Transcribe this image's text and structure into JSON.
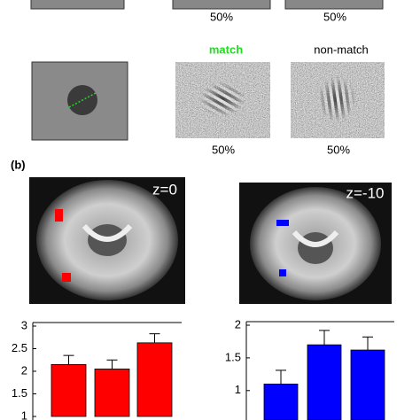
{
  "figure": {
    "row1_labels": [
      "50%",
      "50%"
    ],
    "row2_headers": [
      "match",
      "non-match"
    ],
    "row2_labels": [
      "50%",
      "50%"
    ],
    "panel_label": "(b)",
    "slice_labels": [
      "z=0",
      "z=-10"
    ]
  },
  "chart_data": [
    {
      "type": "bar",
      "values": [
        2.15,
        2.05,
        2.63
      ],
      "errors": [
        0.2,
        0.2,
        0.2
      ],
      "color": "#ff0000",
      "ylim": [
        1,
        3
      ],
      "yticks": [
        1,
        1.5,
        2,
        2.5,
        3
      ]
    },
    {
      "type": "bar",
      "values": [
        1.1,
        1.7,
        1.62
      ],
      "errors": [
        0.21,
        0.22,
        0.2
      ],
      "color": "#0000ff",
      "ylim": [
        0.55,
        2
      ],
      "yticks": [
        1,
        1.5,
        2
      ]
    }
  ]
}
